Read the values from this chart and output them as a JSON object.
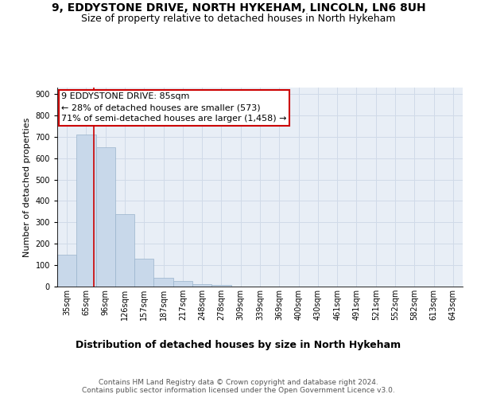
{
  "title": "9, EDDYSTONE DRIVE, NORTH HYKEHAM, LINCOLN, LN6 8UH",
  "subtitle": "Size of property relative to detached houses in North Hykeham",
  "xlabel": "Distribution of detached houses by size in North Hykeham",
  "ylabel": "Number of detached properties",
  "categories": [
    "35sqm",
    "65sqm",
    "96sqm",
    "126sqm",
    "157sqm",
    "187sqm",
    "217sqm",
    "248sqm",
    "278sqm",
    "309sqm",
    "339sqm",
    "369sqm",
    "400sqm",
    "430sqm",
    "461sqm",
    "491sqm",
    "521sqm",
    "552sqm",
    "582sqm",
    "613sqm",
    "643sqm"
  ],
  "values": [
    150,
    710,
    650,
    340,
    130,
    40,
    25,
    10,
    8,
    0,
    0,
    0,
    0,
    0,
    0,
    0,
    0,
    0,
    0,
    0,
    0
  ],
  "bar_color": "#c8d8ea",
  "bar_edge_color": "#9ab4cc",
  "grid_color": "#d0dae8",
  "background_color": "#e8eef6",
  "vline_x_idx": 1.38,
  "vline_color": "#cc0000",
  "annotation_line1": "9 EDDYSTONE DRIVE: 85sqm",
  "annotation_line2": "← 28% of detached houses are smaller (573)",
  "annotation_line3": "71% of semi-detached houses are larger (1,458) →",
  "annotation_box_color": "#cc0000",
  "ylim": [
    0,
    930
  ],
  "yticks": [
    0,
    100,
    200,
    300,
    400,
    500,
    600,
    700,
    800,
    900
  ],
  "footer_text": "Contains HM Land Registry data © Crown copyright and database right 2024.\nContains public sector information licensed under the Open Government Licence v3.0.",
  "title_fontsize": 10,
  "subtitle_fontsize": 9,
  "xlabel_fontsize": 9,
  "ylabel_fontsize": 8,
  "tick_fontsize": 7,
  "annotation_fontsize": 8,
  "footer_fontsize": 6.5
}
